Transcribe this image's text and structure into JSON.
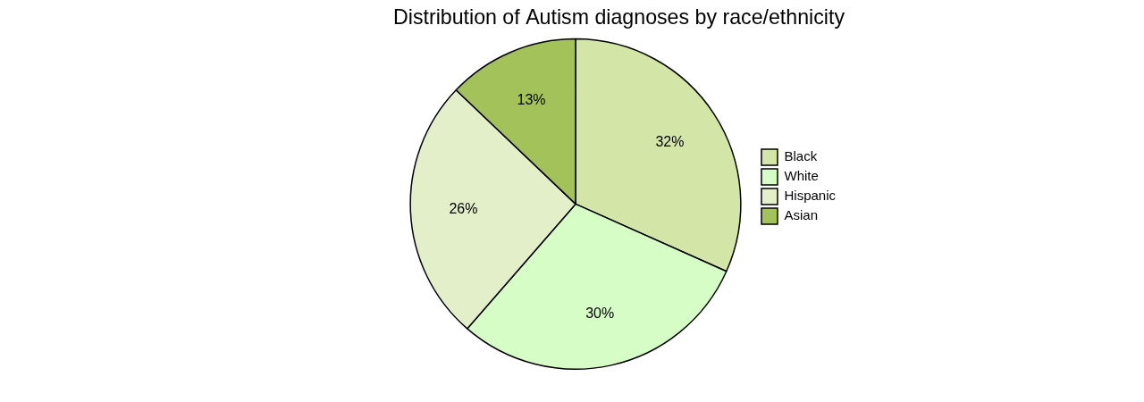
{
  "chart_data": {
    "type": "pie",
    "title": "Distribution of Autism diagnoses by race/ethnicity",
    "categories": [
      "Black",
      "White",
      "Hispanic",
      "Asian"
    ],
    "values": [
      32,
      30,
      26,
      13
    ],
    "value_labels": [
      "32%",
      "30%",
      "26%",
      "13%"
    ],
    "colors": [
      "#d3e6a8",
      "#d6fdc6",
      "#e3efc8",
      "#a3c25a"
    ],
    "data_labels": true,
    "legend": "right"
  }
}
